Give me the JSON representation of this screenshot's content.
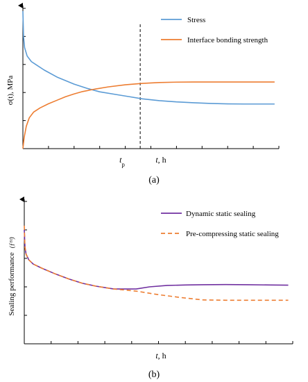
{
  "chart_data": [
    {
      "type": "line",
      "panel_label": "(a)",
      "xlabel_italic": "t",
      "xlabel_unit": ", h",
      "ylabel": "σ(t), MPa",
      "marker_label": "t",
      "marker_subscript": "p",
      "marker_x": 27.5,
      "xlim": [
        0,
        60
      ],
      "ylim": [
        0,
        100
      ],
      "yticks": [
        0,
        20,
        40,
        60,
        80,
        100
      ],
      "xticks": [
        0,
        6,
        12,
        18,
        24,
        30,
        36,
        42,
        48,
        54,
        60
      ],
      "legend_position": "top-right",
      "series": [
        {
          "name": "Stress",
          "color": "#5b9bd5",
          "x": [
            0,
            0.15,
            0.4,
            1,
            2,
            3,
            5,
            8,
            12,
            15,
            18,
            22,
            25,
            28,
            32,
            36,
            40,
            44,
            48,
            52,
            56,
            59
          ],
          "y": [
            98,
            80,
            72,
            66,
            62,
            60,
            56,
            51,
            46,
            43,
            40.5,
            38.5,
            37,
            35.5,
            34.2,
            33.3,
            32.7,
            32.2,
            31.9,
            31.8,
            31.8,
            31.8
          ]
        },
        {
          "name": "Interface bonding strength",
          "color": "#ed7d31",
          "x": [
            0,
            0.3,
            0.8,
            1.5,
            2.5,
            4,
            6,
            8,
            10,
            12,
            14,
            17,
            20,
            24,
            28,
            32,
            36,
            40,
            48,
            59
          ],
          "y": [
            0,
            8,
            16,
            22,
            26,
            29,
            32,
            34.5,
            37,
            39,
            40.7,
            42.5,
            44,
            45.5,
            46.5,
            47.1,
            47.4,
            47.5,
            47.5,
            47.5
          ]
        }
      ]
    },
    {
      "type": "line",
      "panel_label": "(b)",
      "xlabel_italic": "t",
      "xlabel_unit": ", h",
      "ylabel": "Sealing performance",
      "ylabel_unit": "(ƒᴮᶠ)",
      "xlim": [
        0,
        60
      ],
      "ylim": [
        0,
        100
      ],
      "yticks": [
        0,
        20,
        40,
        60,
        80,
        100
      ],
      "xticks": [
        0,
        6,
        12,
        18,
        24,
        30,
        36,
        42,
        48,
        54,
        60
      ],
      "legend_position": "top-right",
      "series": [
        {
          "name": "Dynamic static sealing",
          "color": "#7030a0",
          "style": "solid",
          "x": [
            0,
            0.15,
            0.4,
            1,
            2,
            4,
            7,
            10,
            13,
            16,
            20,
            25,
            28,
            32,
            36,
            40,
            45,
            50,
            55,
            59
          ],
          "y": [
            80,
            68,
            63,
            59,
            56,
            53,
            49,
            45.5,
            42.5,
            40.5,
            38.5,
            38.5,
            40,
            41,
            41.3,
            41.5,
            41.6,
            41.5,
            41.3,
            41.2
          ]
        },
        {
          "name": "Pre-compressing static sealing",
          "color": "#ed7d31",
          "style": "dashed",
          "x": [
            0,
            0.15,
            0.4,
            1,
            2,
            4,
            7,
            10,
            13,
            16,
            20,
            25,
            30,
            35,
            40,
            45,
            50,
            55,
            59
          ],
          "y": [
            83,
            68,
            63,
            59,
            56,
            53,
            49,
            45.5,
            42.5,
            40.5,
            38.5,
            37,
            34.5,
            32.5,
            30.8,
            30.6,
            30.6,
            30.6,
            30.6
          ]
        }
      ]
    }
  ]
}
